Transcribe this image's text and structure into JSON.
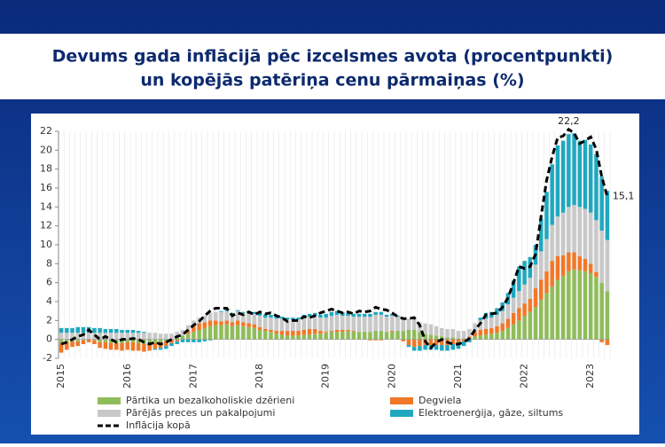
{
  "chart_data": {
    "type": "bar",
    "stacked": true,
    "title": [
      "Devums gada inflācijā pēc izcelsmes avota (procentpunkti)",
      "un kopējās patēriņa cenu pārmaiņas (%)"
    ],
    "categories": [
      "2015",
      null,
      null,
      null,
      null,
      null,
      null,
      null,
      null,
      null,
      null,
      null,
      "2016",
      null,
      null,
      null,
      null,
      null,
      null,
      null,
      null,
      null,
      null,
      null,
      "2017",
      null,
      null,
      null,
      null,
      null,
      null,
      null,
      null,
      null,
      null,
      null,
      "2018",
      null,
      null,
      null,
      null,
      null,
      null,
      null,
      null,
      null,
      null,
      null,
      "2019",
      null,
      null,
      null,
      null,
      null,
      null,
      null,
      null,
      null,
      null,
      null,
      "2020",
      null,
      null,
      null,
      null,
      null,
      null,
      null,
      null,
      null,
      null,
      null,
      "2021",
      null,
      null,
      null,
      null,
      null,
      null,
      null,
      null,
      null,
      null,
      null,
      "2022",
      null,
      null,
      null,
      null,
      null,
      null,
      null,
      null,
      null,
      null,
      null,
      "2023",
      null,
      null,
      null
    ],
    "ylim": [
      -2,
      22
    ],
    "yticks": [
      -2,
      0,
      2,
      4,
      6,
      8,
      10,
      12,
      14,
      16,
      18,
      20,
      22
    ],
    "series": [
      {
        "name": "Pārtika un bezalkoholiskie dzērieni",
        "color": "#8fbc5a",
        "type": "bar",
        "values": [
          -0.4,
          -0.3,
          -0.2,
          -0.2,
          -0.1,
          0,
          -0.1,
          -0.3,
          -0.3,
          -0.4,
          -0.4,
          -0.4,
          -0.3,
          -0.3,
          -0.4,
          -0.5,
          -0.5,
          -0.4,
          -0.3,
          -0.2,
          0,
          0.2,
          0.4,
          0.6,
          0.8,
          1.0,
          1.2,
          1.4,
          1.5,
          1.5,
          1.6,
          1.4,
          1.5,
          1.4,
          1.3,
          1.2,
          1.0,
          0.9,
          0.8,
          0.6,
          0.5,
          0.4,
          0.4,
          0.4,
          0.5,
          0.5,
          0.6,
          0.6,
          0.7,
          0.8,
          0.8,
          0.8,
          0.9,
          0.8,
          0.8,
          0.8,
          0.8,
          0.9,
          0.9,
          0.8,
          0.8,
          0.9,
          0.9,
          1.0,
          1.0,
          0.8,
          0.6,
          0.5,
          0.4,
          0.3,
          0.2,
          0.2,
          0.1,
          0.1,
          0.2,
          0.3,
          0.4,
          0.5,
          0.6,
          0.7,
          0.9,
          1.2,
          1.6,
          2.0,
          2.5,
          2.9,
          3.4,
          4.2,
          4.9,
          5.6,
          6.3,
          6.7,
          7.2,
          7.4,
          7.3,
          7.2,
          7.0,
          6.6,
          6.0,
          5.1
        ]
      },
      {
        "name": "Degviela",
        "color": "#f07828",
        "type": "bar",
        "values": [
          -1.0,
          -0.8,
          -0.6,
          -0.5,
          -0.4,
          -0.3,
          -0.4,
          -0.6,
          -0.7,
          -0.7,
          -0.7,
          -0.8,
          -0.8,
          -0.9,
          -0.8,
          -0.8,
          -0.7,
          -0.6,
          -0.6,
          -0.5,
          -0.4,
          -0.2,
          0,
          0.3,
          0.6,
          0.7,
          0.6,
          0.6,
          0.5,
          0.4,
          0.4,
          0.4,
          0.5,
          0.4,
          0.4,
          0.4,
          0.3,
          0.2,
          0.2,
          0.3,
          0.4,
          0.5,
          0.5,
          0.5,
          0.5,
          0.6,
          0.5,
          0.3,
          0.1,
          0.1,
          0.2,
          0.2,
          0.1,
          0.1,
          0,
          0,
          -0.1,
          -0.1,
          -0.1,
          0,
          0.1,
          0,
          -0.2,
          -0.6,
          -0.8,
          -0.7,
          -0.6,
          -0.6,
          -0.6,
          -0.6,
          -0.6,
          -0.5,
          -0.4,
          -0.2,
          0.1,
          0.5,
          0.6,
          0.6,
          0.6,
          0.7,
          0.8,
          1.0,
          1.2,
          1.3,
          1.3,
          1.4,
          2.0,
          2.1,
          2.3,
          2.7,
          2.5,
          2.2,
          2.0,
          1.8,
          1.5,
          1.3,
          1.0,
          0.5,
          -0.3,
          -0.6
        ]
      },
      {
        "name": "Pārējās preces un pakalpojumi",
        "color": "#c8c8c8",
        "type": "bar",
        "values": [
          0.7,
          0.7,
          0.7,
          0.7,
          0.7,
          0.7,
          0.7,
          0.7,
          0.7,
          0.7,
          0.7,
          0.7,
          0.7,
          0.7,
          0.7,
          0.7,
          0.7,
          0.7,
          0.6,
          0.6,
          0.6,
          0.6,
          0.6,
          0.6,
          0.6,
          0.6,
          0.7,
          0.8,
          0.9,
          1.0,
          1.0,
          0.9,
          1.0,
          1.0,
          1.1,
          1.1,
          1.2,
          1.2,
          1.3,
          1.3,
          1.3,
          1.2,
          1.2,
          1.2,
          1.3,
          1.3,
          1.4,
          1.4,
          1.5,
          1.6,
          1.6,
          1.5,
          1.5,
          1.5,
          1.6,
          1.6,
          1.6,
          1.7,
          1.7,
          1.6,
          1.6,
          1.5,
          1.4,
          1.2,
          1.1,
          1.0,
          1.1,
          1.1,
          1.0,
          0.9,
          0.9,
          0.9,
          0.8,
          0.8,
          0.8,
          0.9,
          1.0,
          1.1,
          1.1,
          1.2,
          1.3,
          1.5,
          1.6,
          1.8,
          2.0,
          2.2,
          2.5,
          3.0,
          3.4,
          3.8,
          4.2,
          4.5,
          4.8,
          5.0,
          5.2,
          5.3,
          5.4,
          5.5,
          5.5,
          5.4
        ]
      },
      {
        "name": "Elektroenerģija, gāze, siltums",
        "color": "#1fa8c0",
        "type": "bar",
        "values": [
          0.5,
          0.5,
          0.5,
          0.6,
          0.6,
          0.6,
          0.5,
          0.5,
          0.4,
          0.4,
          0.4,
          0.3,
          0.3,
          0.3,
          0.2,
          0.1,
          0,
          -0.1,
          -0.2,
          -0.3,
          -0.3,
          -0.3,
          -0.3,
          -0.3,
          -0.3,
          -0.3,
          -0.2,
          -0.1,
          0,
          0.1,
          0.2,
          0.1,
          0.1,
          0.1,
          0.2,
          0.2,
          0.3,
          0.3,
          0.3,
          0.3,
          0.2,
          0.2,
          0.2,
          0.2,
          0.3,
          0.3,
          0.3,
          0.3,
          0.4,
          0.4,
          0.4,
          0.4,
          0.3,
          0.3,
          0.3,
          0.3,
          0.3,
          0.3,
          0.3,
          0.2,
          0.2,
          0.1,
          0,
          -0.2,
          -0.4,
          -0.5,
          -0.5,
          -0.5,
          -0.5,
          -0.6,
          -0.6,
          -0.6,
          -0.6,
          -0.5,
          -0.3,
          0,
          0.3,
          0.6,
          0.6,
          0.7,
          0.9,
          1.2,
          1.8,
          2.6,
          2.5,
          2.2,
          2.1,
          3.5,
          5.0,
          6.4,
          7.5,
          7.6,
          7.7,
          7.6,
          7.0,
          7.3,
          7.2,
          7.0,
          5.7,
          5.2
        ]
      },
      {
        "name": "Inflācija kopā",
        "color": "#000000",
        "type": "line",
        "values": [
          -0.5,
          -0.3,
          0,
          0.3,
          0.5,
          1.0,
          0.5,
          0,
          0.3,
          0,
          -0.3,
          0,
          0,
          0.1,
          0,
          -0.3,
          -0.5,
          -0.3,
          -0.5,
          -0.3,
          0,
          0.3,
          0.5,
          1.0,
          1.5,
          1.9,
          2.5,
          3.0,
          3.3,
          3.3,
          3.3,
          2.5,
          2.8,
          2.6,
          2.9,
          2.6,
          2.9,
          2.7,
          2.8,
          2.5,
          2.3,
          1.9,
          2.0,
          2.0,
          2.4,
          2.3,
          2.5,
          2.8,
          3.0,
          3.2,
          3.0,
          2.8,
          2.9,
          2.7,
          3.0,
          2.9,
          3.0,
          3.4,
          3.2,
          3.1,
          2.8,
          2.4,
          2.2,
          2.2,
          2.3,
          1.5,
          -0.2,
          -0.9,
          -0.3,
          0,
          -0.3,
          -0.5,
          -0.5,
          -0.3,
          0.1,
          1.0,
          1.7,
          2.6,
          2.7,
          2.8,
          3.4,
          4.4,
          6.0,
          7.7,
          7.5,
          7.7,
          9.0,
          13.0,
          16.8,
          19.3,
          21.3,
          21.5,
          22.2,
          21.8,
          20.7,
          21.0,
          21.4,
          20.1,
          17.2,
          15.1
        ],
        "value_labels": [
          null,
          null,
          null,
          null,
          null,
          null,
          null,
          null,
          null,
          null,
          null,
          null,
          null,
          null,
          null,
          null,
          null,
          null,
          null,
          null,
          null,
          null,
          null,
          null,
          null,
          null,
          null,
          null,
          null,
          null,
          null,
          null,
          null,
          null,
          null,
          null,
          null,
          null,
          null,
          null,
          null,
          null,
          null,
          null,
          null,
          null,
          null,
          null,
          null,
          null,
          null,
          null,
          null,
          null,
          null,
          null,
          null,
          null,
          null,
          null,
          null,
          null,
          null,
          null,
          null,
          null,
          null,
          null,
          null,
          null,
          null,
          null,
          null,
          null,
          null,
          null,
          null,
          null,
          null,
          null,
          null,
          null,
          null,
          null,
          null,
          null,
          null,
          null,
          null,
          null,
          null,
          null,
          "22,2",
          null,
          null,
          null,
          null,
          null,
          null,
          "15,1"
        ]
      }
    ]
  }
}
